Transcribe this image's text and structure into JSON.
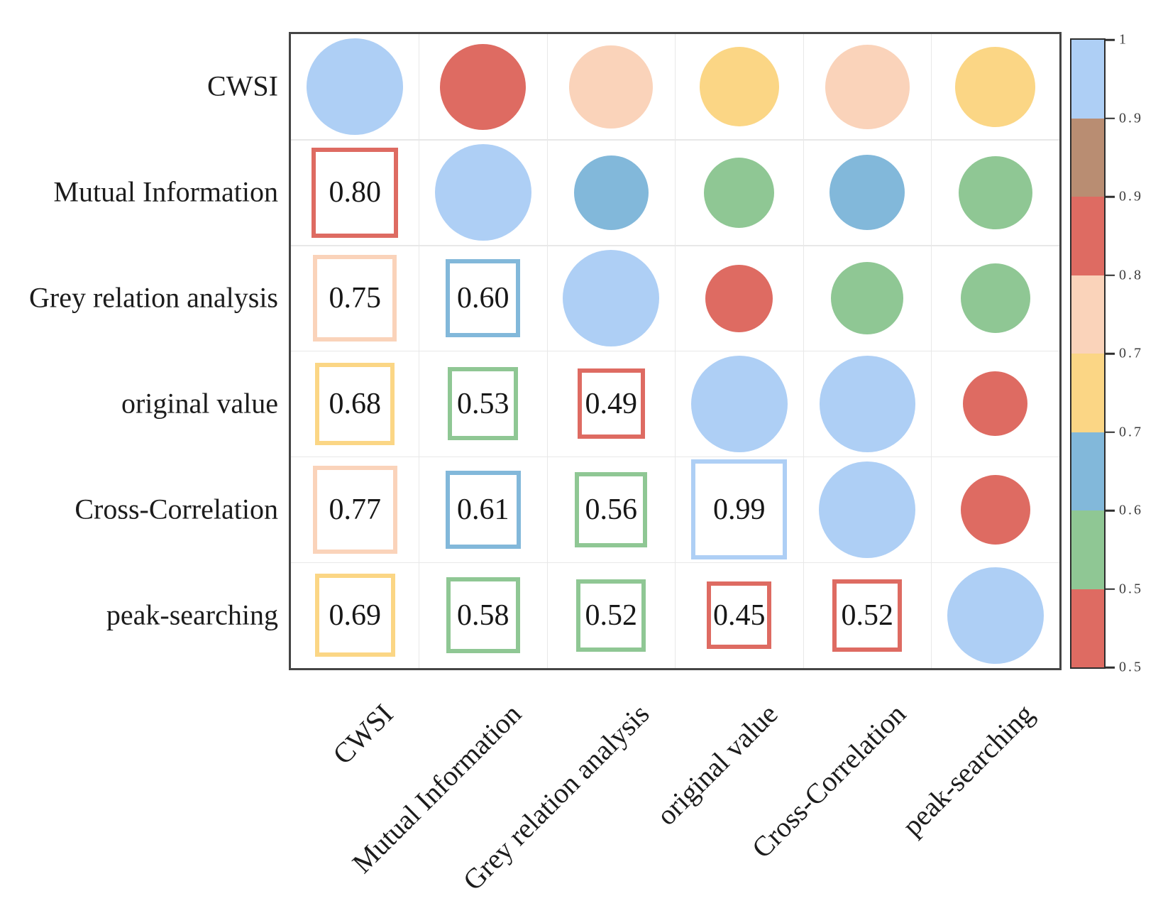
{
  "chart_data": {
    "type": "heatmap",
    "subtype": "correlogram",
    "description": "Correlation matrix: upper triangle shows circles sized and colored by correlation value, lower triangle shows numeric values inside colored square outlines, diagonal shows full-size light blue circles (value 1). Colorbar legend on the right.",
    "variables": [
      "CWSI",
      "Mutual Information",
      "Grey relation analysis",
      "original value",
      "Cross-Correlation",
      "peak-searching"
    ],
    "matrix": [
      [
        1.0,
        0.8,
        0.75,
        0.68,
        0.77,
        0.69
      ],
      [
        0.8,
        1.0,
        0.6,
        0.53,
        0.61,
        0.58
      ],
      [
        0.75,
        0.6,
        1.0,
        0.49,
        0.56,
        0.52
      ],
      [
        0.68,
        0.53,
        0.49,
        1.0,
        0.99,
        0.45
      ],
      [
        0.77,
        0.61,
        0.56,
        0.99,
        1.0,
        0.52
      ],
      [
        0.69,
        0.58,
        0.52,
        0.45,
        0.52,
        1.0
      ]
    ],
    "matrix_display": [
      [
        "",
        "",
        "",
        "",
        "",
        ""
      ],
      [
        "0.80",
        "",
        "",
        "",
        "",
        ""
      ],
      [
        "0.75",
        "0.60",
        "",
        "",
        "",
        ""
      ],
      [
        "0.68",
        "0.53",
        "0.49",
        "",
        "",
        ""
      ],
      [
        "0.77",
        "0.61",
        "0.56",
        "0.99",
        "",
        ""
      ],
      [
        "0.69",
        "0.58",
        "0.52",
        "0.45",
        "0.52",
        ""
      ]
    ],
    "cell_colors": [
      [
        "lightblue",
        "red",
        "peach",
        "yellow",
        "peach",
        "yellow"
      ],
      [
        "red",
        "lightblue",
        "blue",
        "green",
        "blue",
        "green"
      ],
      [
        "peach",
        "blue",
        "lightblue",
        "red",
        "green",
        "green"
      ],
      [
        "yellow",
        "green",
        "red",
        "lightblue",
        "lightblue",
        "red"
      ],
      [
        "peach",
        "blue",
        "green",
        "lightblue",
        "lightblue",
        "red"
      ],
      [
        "yellow",
        "green",
        "green",
        "red",
        "red",
        "lightblue"
      ]
    ],
    "palette": {
      "lightblue": "#aecff5",
      "blue": "#82b8da",
      "green": "#8fc794",
      "yellow": "#fbd685",
      "peach": "#fad3ba",
      "red": "#de6b62",
      "brown": "#b98d72"
    },
    "colorbar": {
      "position": "right",
      "tick_labels": [
        "1",
        "0.9",
        "0.9",
        "0.8",
        "0.7",
        "0.7",
        "0.6",
        "0.5",
        "0.5"
      ],
      "segment_colors_top_to_bottom": [
        "lightblue",
        "brown",
        "red",
        "peach",
        "yellow",
        "blue",
        "green",
        "red"
      ]
    },
    "layout": {
      "grid": "6x6",
      "upper_triangle": "circles",
      "lower_triangle": "outlined squares with values",
      "diagonal_value": 1,
      "grid_lines": true
    }
  }
}
